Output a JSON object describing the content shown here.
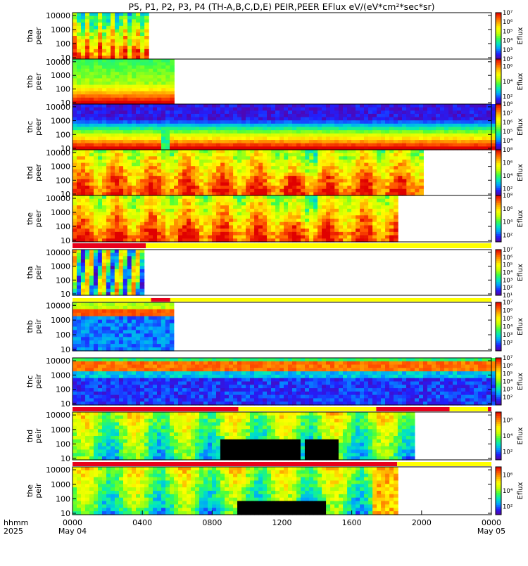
{
  "chart_data": {
    "type": "heatmap",
    "title": "P5, P1, P2, P3, P4 (TH-A,B,C,D,E) PEIR,PEER EFlux eV/(eV*cm²*sec*sr)",
    "xlabel_top": "hhmm",
    "xlabel_bottom": "2025",
    "x_ticks": [
      {
        "label": "0000",
        "date": "May 04",
        "hour": 0
      },
      {
        "label": "0400",
        "date": "",
        "hour": 4
      },
      {
        "label": "0800",
        "date": "",
        "hour": 8
      },
      {
        "label": "1200",
        "date": "",
        "hour": 12
      },
      {
        "label": "1600",
        "date": "",
        "hour": 16
      },
      {
        "label": "2000",
        "date": "",
        "hour": 20
      },
      {
        "label": "0000",
        "date": "May 05",
        "hour": 24
      }
    ],
    "xlim_hours": [
      0,
      24
    ],
    "y_ticks": [
      "10000",
      "1000",
      "100",
      "10"
    ],
    "y_scale": "log",
    "colorbar_label": "Eflux",
    "panels": [
      {
        "ylabel1": "tha",
        "ylabel2": "peer",
        "coverage_end_hour": 4.2,
        "style": "peer_a",
        "cbar_min_exp": 2,
        "cbar_max_exp": 7,
        "cbar_ticks": [
          {
            "exp": 7,
            "text": "10⁷"
          },
          {
            "exp": 6,
            "text": "10⁶"
          },
          {
            "exp": 5,
            "text": "10⁵"
          },
          {
            "exp": 4,
            "text": "10⁴"
          },
          {
            "exp": 3,
            "text": "10³"
          },
          {
            "exp": 2,
            "text": "10²"
          }
        ]
      },
      {
        "ylabel1": "thb",
        "ylabel2": "peer",
        "coverage_end_hour": 5.7,
        "style": "peer_b",
        "cbar_min_exp": 1,
        "cbar_max_exp": 7,
        "cbar_ticks": [
          {
            "exp": 6,
            "text": "10⁶"
          },
          {
            "exp": 4,
            "text": "10⁴"
          },
          {
            "exp": 2,
            "text": "10²"
          }
        ]
      },
      {
        "ylabel1": "thc",
        "ylabel2": "peer",
        "coverage_end_hour": 24,
        "style": "peer_c",
        "cbar_min_exp": 3,
        "cbar_max_exp": 8,
        "cbar_ticks": [
          {
            "exp": 8,
            "text": "10⁸"
          },
          {
            "exp": 7,
            "text": "10⁷"
          },
          {
            "exp": 6,
            "text": "10⁶"
          },
          {
            "exp": 5,
            "text": "10⁵"
          },
          {
            "exp": 4,
            "text": "10⁴"
          }
        ]
      },
      {
        "ylabel1": "thd",
        "ylabel2": "peer",
        "coverage_end_hour": 19.9,
        "style": "peer_d",
        "cbar_min_exp": 1,
        "cbar_max_exp": 8,
        "cbar_ticks": [
          {
            "exp": 8,
            "text": "10⁸"
          },
          {
            "exp": 6,
            "text": "10⁶"
          },
          {
            "exp": 4,
            "text": "10⁴"
          },
          {
            "exp": 2,
            "text": "10²"
          }
        ]
      },
      {
        "ylabel1": "the",
        "ylabel2": "peer",
        "coverage_end_hour": 18.6,
        "style": "peer_d",
        "cbar_min_exp": 1,
        "cbar_max_exp": 8,
        "cbar_ticks": [
          {
            "exp": 8,
            "text": "10⁸"
          },
          {
            "exp": 6,
            "text": "10⁶"
          },
          {
            "exp": 4,
            "text": "10⁴"
          },
          {
            "exp": 2,
            "text": "10²"
          }
        ]
      },
      {
        "ylabel1": "tha",
        "ylabel2": "peir",
        "coverage_end_hour": 4.1,
        "style": "peir_a",
        "cbar_min_exp": 1,
        "cbar_max_exp": 7,
        "cbar_ticks": [
          {
            "exp": 7,
            "text": "10⁷"
          },
          {
            "exp": 6,
            "text": "10⁶"
          },
          {
            "exp": 5,
            "text": "10⁵"
          },
          {
            "exp": 4,
            "text": "10⁴"
          },
          {
            "exp": 3,
            "text": "10³"
          },
          {
            "exp": 2,
            "text": "10²"
          },
          {
            "exp": 1,
            "text": "10¹"
          }
        ]
      },
      {
        "ylabel1": "thb",
        "ylabel2": "peir",
        "coverage_end_hour": 5.6,
        "style": "peir_b",
        "cbar_min_exp": 1,
        "cbar_max_exp": 7,
        "cbar_ticks": [
          {
            "exp": 7,
            "text": "10⁷"
          },
          {
            "exp": 6,
            "text": "10⁶"
          },
          {
            "exp": 5,
            "text": "10⁵"
          },
          {
            "exp": 4,
            "text": "10⁴"
          },
          {
            "exp": 3,
            "text": "10³"
          },
          {
            "exp": 2,
            "text": "10²"
          }
        ]
      },
      {
        "ylabel1": "thc",
        "ylabel2": "peir",
        "coverage_end_hour": 24,
        "style": "peir_c",
        "cbar_min_exp": 1,
        "cbar_max_exp": 7,
        "cbar_ticks": [
          {
            "exp": 7,
            "text": "10⁷"
          },
          {
            "exp": 6,
            "text": "10⁶"
          },
          {
            "exp": 5,
            "text": "10⁵"
          },
          {
            "exp": 4,
            "text": "10⁴"
          },
          {
            "exp": 3,
            "text": "10³"
          },
          {
            "exp": 2,
            "text": "10²"
          }
        ]
      },
      {
        "ylabel1": "thd",
        "ylabel2": "peir",
        "coverage_end_hour": 19.6,
        "style": "peir_d",
        "cbar_min_exp": 1,
        "cbar_max_exp": 7,
        "cbar_ticks": [
          {
            "exp": 6,
            "text": "10⁶"
          },
          {
            "exp": 4,
            "text": "10⁴"
          },
          {
            "exp": 2,
            "text": "10²"
          }
        ]
      },
      {
        "ylabel1": "the",
        "ylabel2": "peir",
        "coverage_end_hour": 18.6,
        "style": "peir_e",
        "cbar_min_exp": 1,
        "cbar_max_exp": 7,
        "cbar_ticks": [
          {
            "exp": 6,
            "text": "10⁶"
          },
          {
            "exp": 4,
            "text": "10⁴"
          },
          {
            "exp": 2,
            "text": "10²"
          }
        ]
      }
    ],
    "mode_bars": [
      {
        "segments": [
          {
            "start": 0,
            "end": 4.2,
            "color": "#e8001b"
          },
          {
            "start": 4.2,
            "end": 24,
            "color": "#ffff00"
          }
        ]
      },
      {
        "segments": [
          {
            "start": 0,
            "end": 4.5,
            "color": "#ffff00"
          },
          {
            "start": 4.5,
            "end": 5.6,
            "color": "#e8001b"
          },
          {
            "start": 5.6,
            "end": 24,
            "color": "#ffff00"
          }
        ]
      },
      {
        "segments": [
          {
            "start": 0,
            "end": 9.5,
            "color": "#e8001b"
          },
          {
            "start": 9.5,
            "end": 17.4,
            "color": "#ffff00"
          },
          {
            "start": 17.4,
            "end": 21.6,
            "color": "#e8001b"
          },
          {
            "start": 21.6,
            "end": 23.8,
            "color": "#ffff00"
          },
          {
            "start": 23.8,
            "end": 24,
            "color": "#e8001b"
          }
        ]
      },
      {
        "segments": [
          {
            "start": 0,
            "end": 18.6,
            "color": "#e8001b"
          },
          {
            "start": 18.6,
            "end": 24,
            "color": "#ffff00"
          }
        ]
      }
    ],
    "colors": {
      "palette": [
        "#5a00a0",
        "#2020ff",
        "#00a0ff",
        "#00e8c0",
        "#40ff40",
        "#c8ff00",
        "#ffff00",
        "#ffb000",
        "#ff5000",
        "#e00000"
      ],
      "background": "#ffffff",
      "axis": "#000000"
    }
  }
}
